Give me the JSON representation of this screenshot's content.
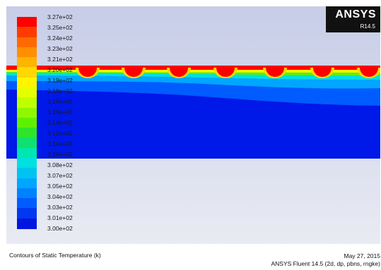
{
  "colormap": {
    "levels": [
      "3.27e+02",
      "3.25e+02",
      "3.24e+02",
      "3.23e+02",
      "3.21e+02",
      "3.20e+02",
      "3.19e+02",
      "3.18e+02",
      "3.16e+02",
      "3.15e+02",
      "3.14e+02",
      "3.12e+02",
      "3.11e+02",
      "3.10e+02",
      "3.08e+02",
      "3.07e+02",
      "3.05e+02",
      "3.04e+02",
      "3.03e+02",
      "3.01e+02",
      "3.00e+02"
    ],
    "colors": [
      "#ff0000",
      "#ff3b00",
      "#ff6a00",
      "#ff8f00",
      "#ffb400",
      "#ffd800",
      "#fff500",
      "#e6ff00",
      "#bfff00",
      "#90f700",
      "#5ff000",
      "#2ee52a",
      "#10e070",
      "#00e6b0",
      "#00e0e0",
      "#00c4f0",
      "#00a6ff",
      "#0082ff",
      "#005cff",
      "#0038f0",
      "#0016e0"
    ]
  },
  "branding": {
    "name": "ANSYS",
    "version": "R14.5"
  },
  "footer": {
    "caption": "Contours of Static Temperature (k)",
    "date": "May 27, 2015",
    "solver": "ANSYS Fluent 14.5 (2d, dp, pbns, rngke)"
  },
  "field": {
    "bands": [
      "#ff0000",
      "#ffb400",
      "#c8ff00",
      "#00e0e0",
      "#00a6ff",
      "#005cff",
      "#0022ee"
    ],
    "background": "#0018e8"
  }
}
